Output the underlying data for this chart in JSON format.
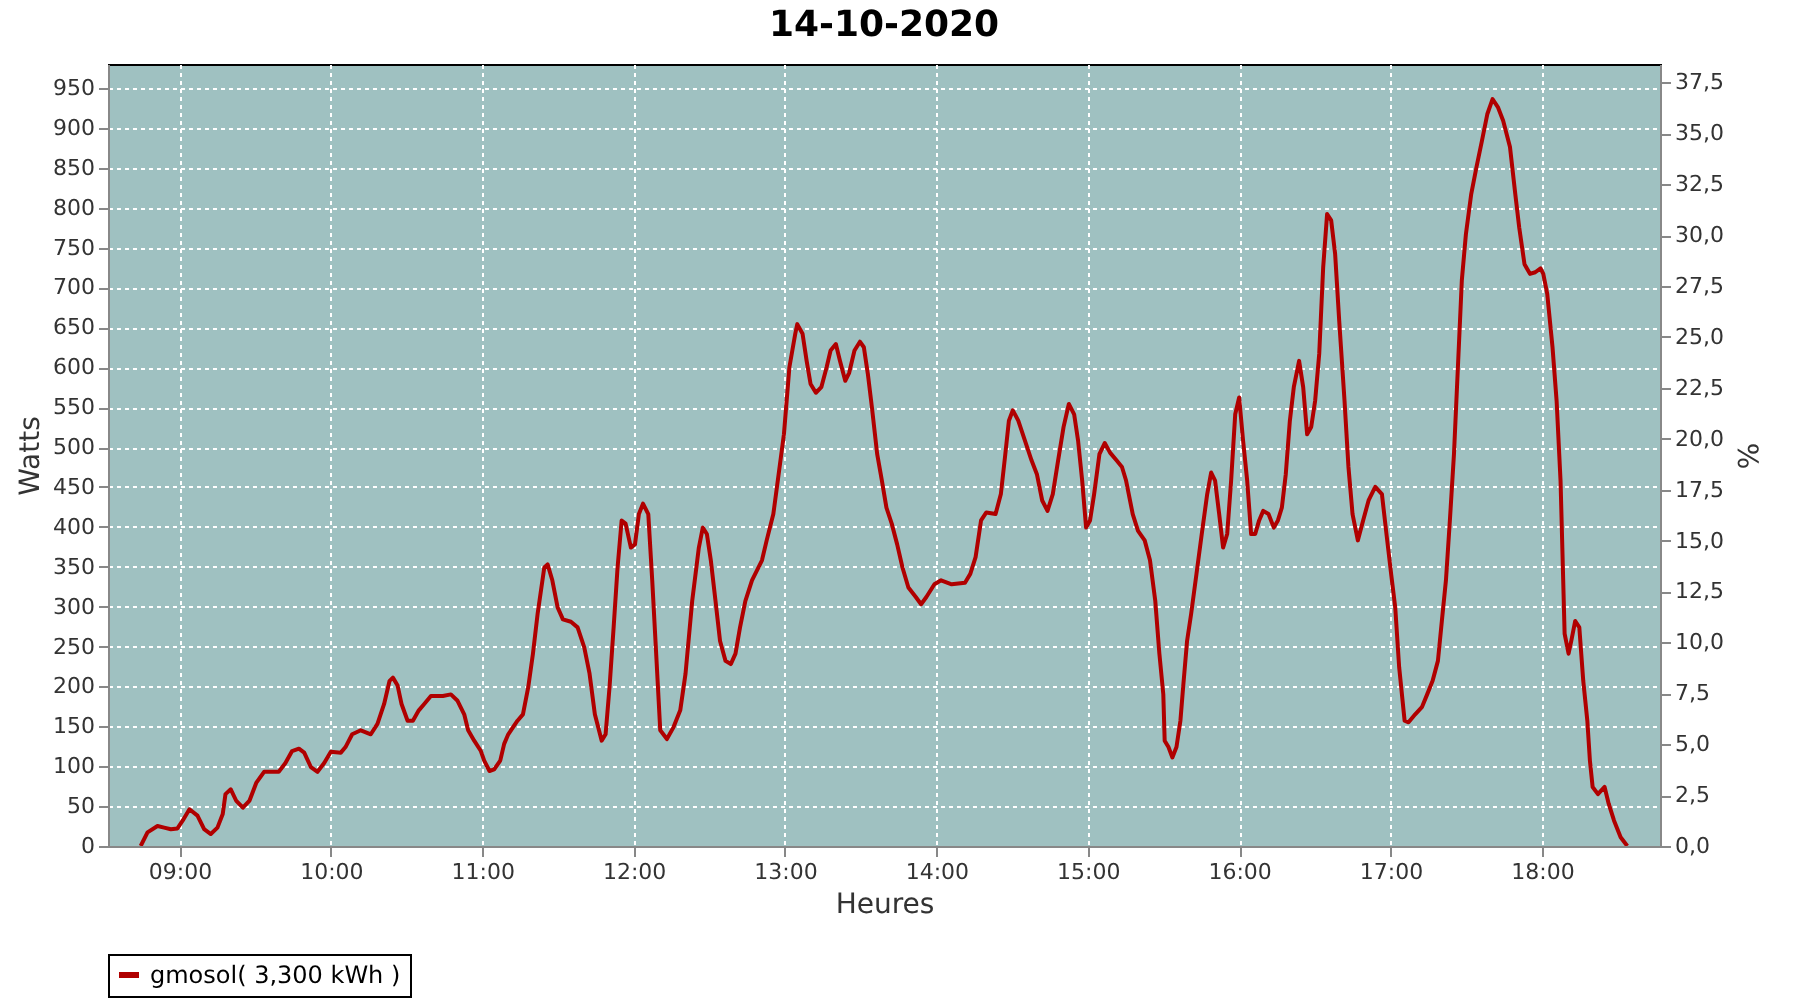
{
  "chart_data": {
    "type": "line",
    "title": "14-10-2020",
    "xlabel": "Heures",
    "ylabel": "Watts",
    "y2label": "%",
    "xlim": [
      8.528,
      18.78
    ],
    "xticks": [
      {
        "value": 9,
        "label": "09:00"
      },
      {
        "value": 10,
        "label": "10:00"
      },
      {
        "value": 11,
        "label": "11:00"
      },
      {
        "value": 12,
        "label": "12:00"
      },
      {
        "value": 13,
        "label": "13:00"
      },
      {
        "value": 14,
        "label": "14:00"
      },
      {
        "value": 15,
        "label": "15:00"
      },
      {
        "value": 16,
        "label": "16:00"
      },
      {
        "value": 17,
        "label": "17:00"
      },
      {
        "value": 18,
        "label": "18:00"
      }
    ],
    "ylim": [
      0,
      980
    ],
    "yticks": [
      0,
      50,
      100,
      150,
      200,
      250,
      300,
      350,
      400,
      450,
      500,
      550,
      600,
      650,
      700,
      750,
      800,
      850,
      900,
      950
    ],
    "y2lim": [
      0,
      38.4
    ],
    "y2ticks": [
      {
        "value": 0,
        "label": "0,0"
      },
      {
        "value": 2.5,
        "label": "2,5"
      },
      {
        "value": 5,
        "label": "5,0"
      },
      {
        "value": 7.5,
        "label": "7,5"
      },
      {
        "value": 10,
        "label": "10,0"
      },
      {
        "value": 12.5,
        "label": "12,5"
      },
      {
        "value": 15,
        "label": "15,0"
      },
      {
        "value": 17.5,
        "label": "17,5"
      },
      {
        "value": 20,
        "label": "20,0"
      },
      {
        "value": 22.5,
        "label": "22,5"
      },
      {
        "value": 25,
        "label": "25,0"
      },
      {
        "value": 27.5,
        "label": "27,5"
      },
      {
        "value": 30,
        "label": "30,0"
      },
      {
        "value": 32.5,
        "label": "32,5"
      },
      {
        "value": 35,
        "label": "35,0"
      },
      {
        "value": 37.5,
        "label": "37,5"
      }
    ],
    "grid": true,
    "legend": "bottom",
    "line_style": "solid",
    "series": [
      {
        "name": "gmosol( 3,300 kWh )",
        "color": "#b00000",
        "x": [
          8.744,
          8.789,
          8.855,
          8.899,
          8.943,
          8.987,
          9.022,
          9.066,
          9.119,
          9.163,
          9.207,
          9.251,
          9.286,
          9.304,
          9.339,
          9.374,
          9.419,
          9.463,
          9.507,
          9.559,
          9.656,
          9.7,
          9.744,
          9.789,
          9.824,
          9.868,
          9.912,
          9.956,
          10.0,
          10.066,
          10.097,
          10.141,
          10.198,
          10.264,
          10.308,
          10.352,
          10.388,
          10.41,
          10.441,
          10.467,
          10.507,
          10.542,
          10.581,
          10.617,
          10.661,
          10.74,
          10.793,
          10.837,
          10.881,
          10.907,
          10.947,
          10.991,
          11.013,
          11.048,
          11.079,
          11.119,
          11.145,
          11.172,
          11.233,
          11.269,
          11.304,
          11.335,
          11.366,
          11.41,
          11.432,
          11.463,
          11.498,
          11.533,
          11.586,
          11.63,
          11.674,
          11.709,
          11.744,
          11.789,
          11.815,
          11.841,
          11.868,
          11.894,
          11.921,
          11.947,
          11.982,
          12.009,
          12.035,
          12.062,
          12.097,
          12.123,
          12.149,
          12.176,
          12.22,
          12.264,
          12.308,
          12.343,
          12.387,
          12.431,
          12.457,
          12.484,
          12.51,
          12.541,
          12.571,
          12.607,
          12.642,
          12.673,
          12.703,
          12.738,
          12.782,
          12.848,
          12.879,
          12.923,
          12.958,
          12.993,
          13.029,
          13.068,
          13.081,
          13.116,
          13.143,
          13.169,
          13.204,
          13.24,
          13.275,
          13.301,
          13.336,
          13.363,
          13.398,
          13.424,
          13.459,
          13.495,
          13.521,
          13.547,
          13.574,
          13.609,
          13.64,
          13.67,
          13.705,
          13.741,
          13.776,
          13.815,
          13.864,
          13.899,
          13.934,
          13.987,
          14.031,
          14.101,
          14.189,
          14.224,
          14.259,
          14.295,
          14.33,
          14.391,
          14.426,
          14.453,
          14.479,
          14.505,
          14.541,
          14.585,
          14.629,
          14.664,
          14.699,
          14.734,
          14.769,
          14.804,
          14.84,
          14.875,
          14.91,
          14.936,
          14.963,
          14.989,
          15.015,
          15.042,
          15.077,
          15.112,
          15.147,
          15.191,
          15.226,
          15.253,
          15.297,
          15.332,
          15.376,
          15.411,
          15.446,
          15.473,
          15.499,
          15.508,
          15.533,
          15.559,
          15.586,
          15.612,
          15.63,
          15.656,
          15.683,
          15.718,
          15.753,
          15.789,
          15.815,
          15.841,
          15.868,
          15.894,
          15.921,
          15.947,
          15.974,
          16.0,
          16.026,
          16.053,
          16.079,
          16.106,
          16.132,
          16.159,
          16.194,
          16.229,
          16.256,
          16.282,
          16.308,
          16.335,
          16.361,
          16.396,
          16.423,
          16.449,
          16.476,
          16.502,
          16.529,
          16.555,
          16.581,
          16.608,
          16.634,
          16.661,
          16.696,
          16.722,
          16.749,
          16.784,
          16.819,
          16.855,
          16.899,
          16.943,
          16.978,
          17.004,
          17.031,
          17.057,
          17.093,
          17.119,
          17.163,
          17.207,
          17.242,
          17.278,
          17.313,
          17.339,
          17.366,
          17.392,
          17.419,
          17.445,
          17.471,
          17.498,
          17.533,
          17.568,
          17.604,
          17.639,
          17.674,
          17.709,
          17.744,
          17.789,
          17.824,
          17.85,
          17.885,
          17.921,
          17.956,
          17.991,
          18.009,
          18.035,
          18.07,
          18.097,
          18.123,
          18.15,
          18.176,
          18.194,
          18.22,
          18.247,
          18.273,
          18.3,
          18.317,
          18.335,
          18.37,
          18.414,
          18.441,
          18.476,
          18.52,
          18.564
        ],
        "values": [
          0,
          17,
          25,
          23,
          21,
          22,
          32,
          46,
          38,
          21,
          15,
          23,
          40,
          65,
          71,
          57,
          48,
          57,
          79,
          93,
          93,
          104,
          119,
          122,
          117,
          99,
          93,
          104,
          118,
          117,
          124,
          140,
          145,
          140,
          153,
          178,
          207,
          211,
          201,
          178,
          157,
          157,
          170,
          178,
          188,
          188,
          190,
          182,
          165,
          145,
          132,
          119,
          107,
          94,
          96,
          107,
          128,
          140,
          157,
          165,
          199,
          241,
          291,
          349,
          353,
          333,
          299,
          284,
          281,
          274,
          249,
          216,
          165,
          132,
          140,
          199,
          274,
          349,
          408,
          404,
          374,
          378,
          416,
          429,
          416,
          333,
          241,
          145,
          134,
          149,
          170,
          216,
          307,
          374,
          399,
          391,
          358,
          307,
          257,
          232,
          228,
          241,
          274,
          307,
          333,
          358,
          383,
          416,
          466,
          516,
          600,
          642,
          654,
          642,
          608,
          579,
          568,
          575,
          600,
          621,
          629,
          608,
          583,
          593,
          621,
          632,
          625,
          592,
          550,
          491,
          458,
          424,
          404,
          378,
          349,
          324,
          312,
          303,
          312,
          328,
          333,
          328,
          330,
          341,
          362,
          408,
          418,
          416,
          441,
          487,
          533,
          546,
          533,
          508,
          483,
          466,
          433,
          420,
          441,
          483,
          525,
          554,
          541,
          508,
          458,
          399,
          408,
          441,
          491,
          505,
          493,
          483,
          475,
          458,
          416,
          395,
          383,
          358,
          307,
          241,
          190,
          132,
          124,
          111,
          124,
          157,
          199,
          257,
          291,
          341,
          391,
          441,
          468,
          458,
          416,
          374,
          391,
          458,
          541,
          562,
          508,
          458,
          391,
          391,
          408,
          420,
          416,
          399,
          408,
          424,
          466,
          533,
          575,
          608,
          575,
          516,
          525,
          558,
          617,
          725,
          792,
          784,
          742,
          658,
          558,
          475,
          416,
          383,
          408,
          433,
          450,
          441,
          383,
          341,
          299,
          224,
          157,
          155,
          165,
          174,
          190,
          207,
          232,
          282,
          333,
          408,
          491,
          600,
          709,
          767,
          817,
          851,
          884,
          917,
          936,
          926,
          909,
          876,
          817,
          775,
          729,
          717,
          719,
          724,
          717,
          692,
          625,
          558,
          458,
          266,
          241,
          257,
          282,
          274,
          207,
          157,
          107,
          74,
          65,
          74,
          53,
          32,
          11,
          0
        ]
      }
    ]
  }
}
